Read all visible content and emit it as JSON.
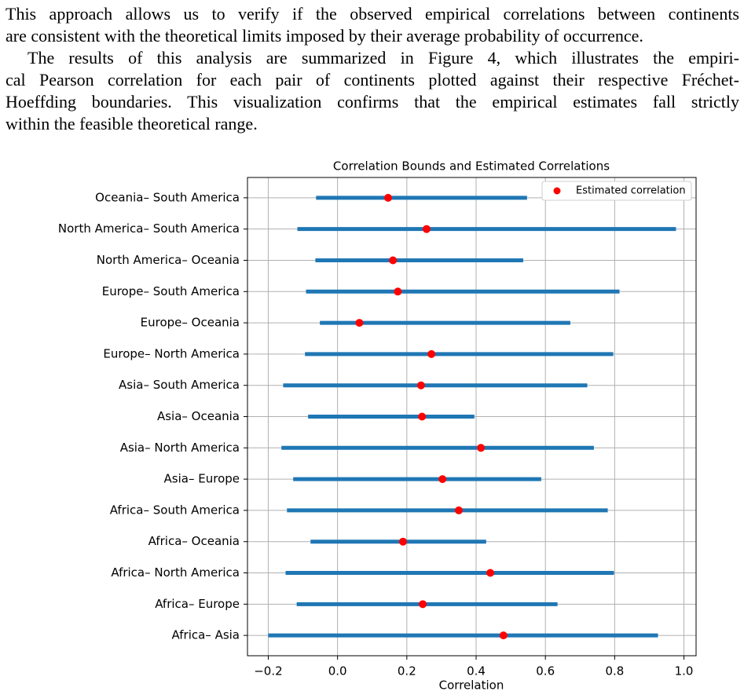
{
  "paragraphs": [
    [
      "This approach allows us to verify if the observed empirical correlations between continents",
      "are consistent with the theoretical limits imposed by their average probability of occurrence."
    ],
    [
      "The results of this analysis are summarized in Figure 4, which illustrates the empiri-",
      "cal Pearson correlation for each pair of continents plotted against their respective Fréchet-",
      "Hoeffding boundaries. This visualization confirms that the empirical estimates fall strictly",
      "within the feasible theoretical range."
    ]
  ],
  "chart_data": {
    "type": "interval_dot",
    "title": "Correlation Bounds and Estimated Correlations",
    "xlabel": "Correlation",
    "categories": [
      "Africa– Asia",
      "Africa– Europe",
      "Africa– North America",
      "Africa– Oceania",
      "Africa– South America",
      "Asia– Europe",
      "Asia– North America",
      "Asia– Oceania",
      "Asia– South America",
      "Europe– North America",
      "Europe– Oceania",
      "Europe– South America",
      "North America– Oceania",
      "North America– South America",
      "Oceania– South America"
    ],
    "bounds": {
      "color": "#1f77b4",
      "lower": [
        -0.2,
        -0.118,
        -0.15,
        -0.078,
        -0.146,
        -0.128,
        -0.162,
        -0.085,
        -0.157,
        -0.094,
        -0.051,
        -0.091,
        -0.064,
        -0.116,
        -0.062
      ],
      "upper": [
        0.925,
        0.635,
        0.798,
        0.429,
        0.78,
        0.588,
        0.74,
        0.395,
        0.721,
        0.796,
        0.672,
        0.814,
        0.536,
        0.977,
        0.547
      ]
    },
    "series": [
      {
        "name": "Estimated correlation",
        "color": "#ff0000",
        "values": [
          0.479,
          0.246,
          0.441,
          0.189,
          0.35,
          0.303,
          0.414,
          0.244,
          0.241,
          0.271,
          0.063,
          0.174,
          0.16,
          0.257,
          0.146
        ]
      }
    ],
    "xlim": [
      -0.26,
      1.035
    ],
    "xticks": [
      {
        "value": -0.2,
        "label": "−0.2"
      },
      {
        "value": 0,
        "label": "0.0"
      },
      0.2,
      0.4,
      0.6,
      0.8,
      {
        "value": 1,
        "label": "1.0"
      }
    ],
    "grid": true,
    "legend": "upper right"
  }
}
